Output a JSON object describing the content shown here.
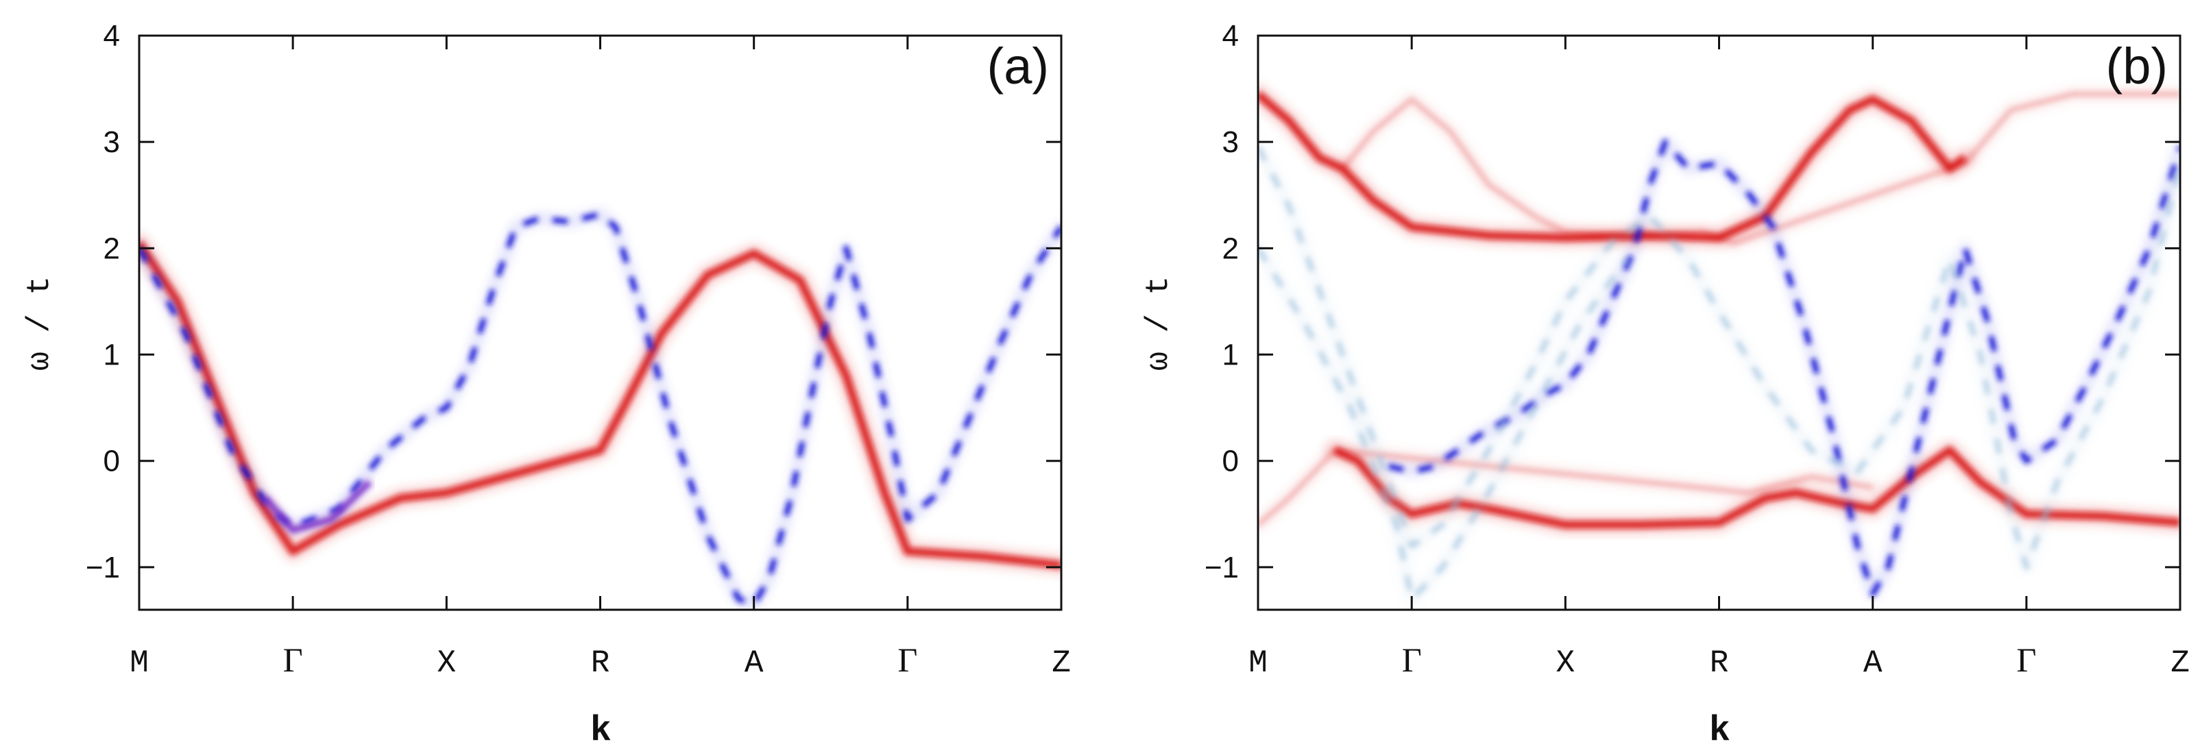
{
  "figure": {
    "title": "",
    "colors": {
      "red_band": "#d81010",
      "blue_band": "#1616d6",
      "light_blue": "#8fb8d8",
      "purple": "#7a28c8",
      "axis": "#111111"
    }
  },
  "chart_data": [
    {
      "type": "line",
      "panel_label": "(a)",
      "xlabel": "k",
      "ylabel": "ω / t",
      "xticks": [
        "M",
        "Γ",
        "X",
        "R",
        "A",
        "Γ",
        "Z"
      ],
      "x_range": [
        0,
        6
      ],
      "ylim": [
        -1.4,
        4
      ],
      "yticks": [
        -1,
        0,
        1,
        2,
        3,
        4
      ],
      "ytick_labels": [
        "−1",
        "0",
        "1",
        "2",
        "3",
        "4"
      ],
      "series": [
        {
          "name": "red band",
          "style": "red",
          "points": [
            [
              0,
              2.05
            ],
            [
              0.25,
              1.5
            ],
            [
              0.5,
              0.6
            ],
            [
              0.75,
              -0.3
            ],
            [
              1,
              -0.85
            ],
            [
              1.3,
              -0.6
            ],
            [
              1.7,
              -0.35
            ],
            [
              2,
              -0.3
            ],
            [
              2.5,
              -0.1
            ],
            [
              3,
              0.1
            ],
            [
              3.15,
              0.5
            ],
            [
              3.4,
              1.2
            ],
            [
              3.7,
              1.75
            ],
            [
              4,
              1.95
            ],
            [
              4.3,
              1.7
            ],
            [
              4.6,
              0.8
            ],
            [
              4.85,
              -0.3
            ],
            [
              5,
              -0.85
            ],
            [
              5.5,
              -0.9
            ],
            [
              6,
              -0.98
            ]
          ]
        },
        {
          "name": "blue band",
          "style": "blue",
          "points": [
            [
              0,
              2.0
            ],
            [
              0.3,
              1.2
            ],
            [
              0.6,
              0.1
            ],
            [
              0.85,
              -0.45
            ],
            [
              1,
              -0.62
            ],
            [
              1.3,
              -0.45
            ],
            [
              1.6,
              0.1
            ],
            [
              1.85,
              0.4
            ],
            [
              2,
              0.5
            ],
            [
              2.15,
              0.9
            ],
            [
              2.3,
              1.6
            ],
            [
              2.45,
              2.2
            ],
            [
              2.6,
              2.28
            ],
            [
              2.8,
              2.25
            ],
            [
              3,
              2.32
            ],
            [
              3.1,
              2.2
            ],
            [
              3.25,
              1.5
            ],
            [
              3.45,
              0.4
            ],
            [
              3.7,
              -0.7
            ],
            [
              3.9,
              -1.3
            ],
            [
              4,
              -1.35
            ],
            [
              4.1,
              -1.1
            ],
            [
              4.25,
              -0.3
            ],
            [
              4.4,
              0.8
            ],
            [
              4.5,
              1.5
            ],
            [
              4.6,
              2.0
            ],
            [
              4.75,
              1.2
            ],
            [
              4.9,
              0.2
            ],
            [
              5,
              -0.55
            ],
            [
              5.2,
              -0.3
            ],
            [
              5.4,
              0.4
            ],
            [
              5.6,
              1.1
            ],
            [
              5.8,
              1.75
            ],
            [
              6,
              2.2
            ]
          ]
        },
        {
          "name": "overlap segment",
          "style": "purple",
          "points": [
            [
              0.82,
              -0.35
            ],
            [
              1,
              -0.65
            ],
            [
              1.25,
              -0.55
            ],
            [
              1.5,
              -0.2
            ]
          ]
        }
      ]
    },
    {
      "type": "line",
      "panel_label": "(b)",
      "xlabel": "k",
      "ylabel": "ω / t",
      "xticks": [
        "M",
        "Γ",
        "X",
        "R",
        "A",
        "Γ",
        "Z"
      ],
      "x_range": [
        0,
        6
      ],
      "ylim": [
        -1.4,
        4
      ],
      "yticks": [
        -1,
        0,
        1,
        2,
        3,
        4
      ],
      "ytick_labels": [
        "−1",
        "0",
        "1",
        "2",
        "3",
        "4"
      ],
      "series": [
        {
          "name": "red upper",
          "style": "red",
          "points": [
            [
              0,
              3.45
            ],
            [
              0.2,
              3.2
            ],
            [
              0.4,
              2.85
            ],
            [
              0.55,
              2.75
            ],
            [
              0.75,
              2.45
            ],
            [
              1,
              2.2
            ],
            [
              1.5,
              2.12
            ],
            [
              2,
              2.1
            ],
            [
              2.5,
              2.12
            ],
            [
              3,
              2.1
            ],
            [
              3.3,
              2.3
            ],
            [
              3.6,
              2.9
            ],
            [
              3.85,
              3.3
            ],
            [
              4,
              3.4
            ],
            [
              4.25,
              3.2
            ],
            [
              4.5,
              2.75
            ],
            [
              4.6,
              2.85
            ]
          ]
        },
        {
          "name": "red upper faint",
          "style": "red-faint",
          "points": [
            [
              0.55,
              2.75
            ],
            [
              0.75,
              3.1
            ],
            [
              1,
              3.4
            ],
            [
              1.25,
              3.1
            ],
            [
              1.5,
              2.6
            ],
            [
              1.8,
              2.3
            ],
            [
              2,
              2.15
            ],
            [
              2.4,
              2.1
            ],
            [
              2.9,
              2.15
            ],
            [
              3.1,
              2.05
            ],
            [
              4.6,
              2.8
            ],
            [
              4.9,
              3.3
            ],
            [
              5.3,
              3.45
            ],
            [
              6,
              3.45
            ]
          ]
        },
        {
          "name": "red lower",
          "style": "red",
          "points": [
            [
              0.5,
              0.1
            ],
            [
              0.65,
              0.0
            ],
            [
              0.85,
              -0.35
            ],
            [
              1,
              -0.5
            ],
            [
              1.3,
              -0.4
            ],
            [
              1.5,
              -0.45
            ],
            [
              2,
              -0.6
            ],
            [
              2.5,
              -0.6
            ],
            [
              3,
              -0.58
            ],
            [
              3.3,
              -0.35
            ],
            [
              3.5,
              -0.3
            ],
            [
              3.8,
              -0.4
            ],
            [
              4,
              -0.45
            ],
            [
              4.25,
              -0.15
            ],
            [
              4.5,
              0.1
            ],
            [
              4.7,
              -0.2
            ],
            [
              5,
              -0.5
            ],
            [
              5.5,
              -0.52
            ],
            [
              6,
              -0.58
            ]
          ]
        },
        {
          "name": "red lower faint",
          "style": "red-faint",
          "points": [
            [
              0,
              -0.6
            ],
            [
              0.2,
              -0.35
            ],
            [
              0.4,
              -0.05
            ],
            [
              0.5,
              0.1
            ],
            [
              3.2,
              -0.3
            ],
            [
              3.6,
              -0.15
            ],
            [
              4,
              -0.25
            ]
          ]
        },
        {
          "name": "blue strong",
          "style": "blue",
          "points": [
            [
              0.85,
              -0.05
            ],
            [
              1,
              -0.1
            ],
            [
              1.15,
              -0.05
            ],
            [
              1.45,
              0.25
            ],
            [
              1.7,
              0.45
            ],
            [
              1.9,
              0.65
            ],
            [
              2,
              0.72
            ],
            [
              2.15,
              1.0
            ],
            [
              2.3,
              1.5
            ],
            [
              2.45,
              2.0
            ],
            [
              2.55,
              2.6
            ],
            [
              2.65,
              3.0
            ],
            [
              2.8,
              2.75
            ],
            [
              3,
              2.8
            ],
            [
              3.2,
              2.5
            ],
            [
              3.35,
              2.2
            ],
            [
              3.55,
              1.3
            ],
            [
              3.75,
              0.2
            ],
            [
              3.9,
              -0.8
            ],
            [
              4,
              -1.25
            ],
            [
              4.1,
              -1.0
            ],
            [
              4.25,
              -0.1
            ],
            [
              4.45,
              1.1
            ],
            [
              4.6,
              2.0
            ],
            [
              4.75,
              1.3
            ],
            [
              4.92,
              0.2
            ],
            [
              5,
              0.0
            ],
            [
              5.2,
              0.2
            ],
            [
              5.4,
              0.75
            ],
            [
              5.6,
              1.35
            ],
            [
              5.8,
              2.0
            ],
            [
              6,
              2.95
            ]
          ]
        },
        {
          "name": "blue faint",
          "style": "blue-faint",
          "points": [
            [
              0,
              2.95
            ],
            [
              0.2,
              2.4
            ],
            [
              0.4,
              1.6
            ],
            [
              0.6,
              0.8
            ],
            [
              0.8,
              0.0
            ],
            [
              1,
              -0.8
            ],
            [
              1.2,
              -0.6
            ],
            [
              1.5,
              0.1
            ],
            [
              1.8,
              0.9
            ],
            [
              2,
              1.5
            ],
            [
              2.3,
              2.05
            ],
            [
              2.55,
              2.3
            ],
            [
              2.8,
              1.9
            ],
            [
              3,
              1.4
            ],
            [
              3.3,
              0.7
            ],
            [
              3.6,
              0.1
            ],
            [
              3.9,
              -0.1
            ],
            [
              4.2,
              0.5
            ],
            [
              4.5,
              1.9
            ],
            [
              4.7,
              1.0
            ],
            [
              4.9,
              -0.5
            ],
            [
              5,
              -1.0
            ],
            [
              5.2,
              -0.2
            ],
            [
              5.5,
              0.6
            ],
            [
              5.8,
              1.6
            ],
            [
              6,
              2.8
            ]
          ]
        },
        {
          "name": "blue faint 2",
          "style": "blue-faint",
          "points": [
            [
              0,
              2.0
            ],
            [
              0.3,
              1.3
            ],
            [
              0.6,
              0.5
            ],
            [
              0.9,
              -0.6
            ],
            [
              1,
              -1.3
            ],
            [
              1.2,
              -1.0
            ],
            [
              1.5,
              -0.3
            ],
            [
              1.8,
              0.5
            ],
            [
              2.1,
              1.3
            ],
            [
              2.4,
              1.9
            ]
          ]
        }
      ]
    }
  ]
}
